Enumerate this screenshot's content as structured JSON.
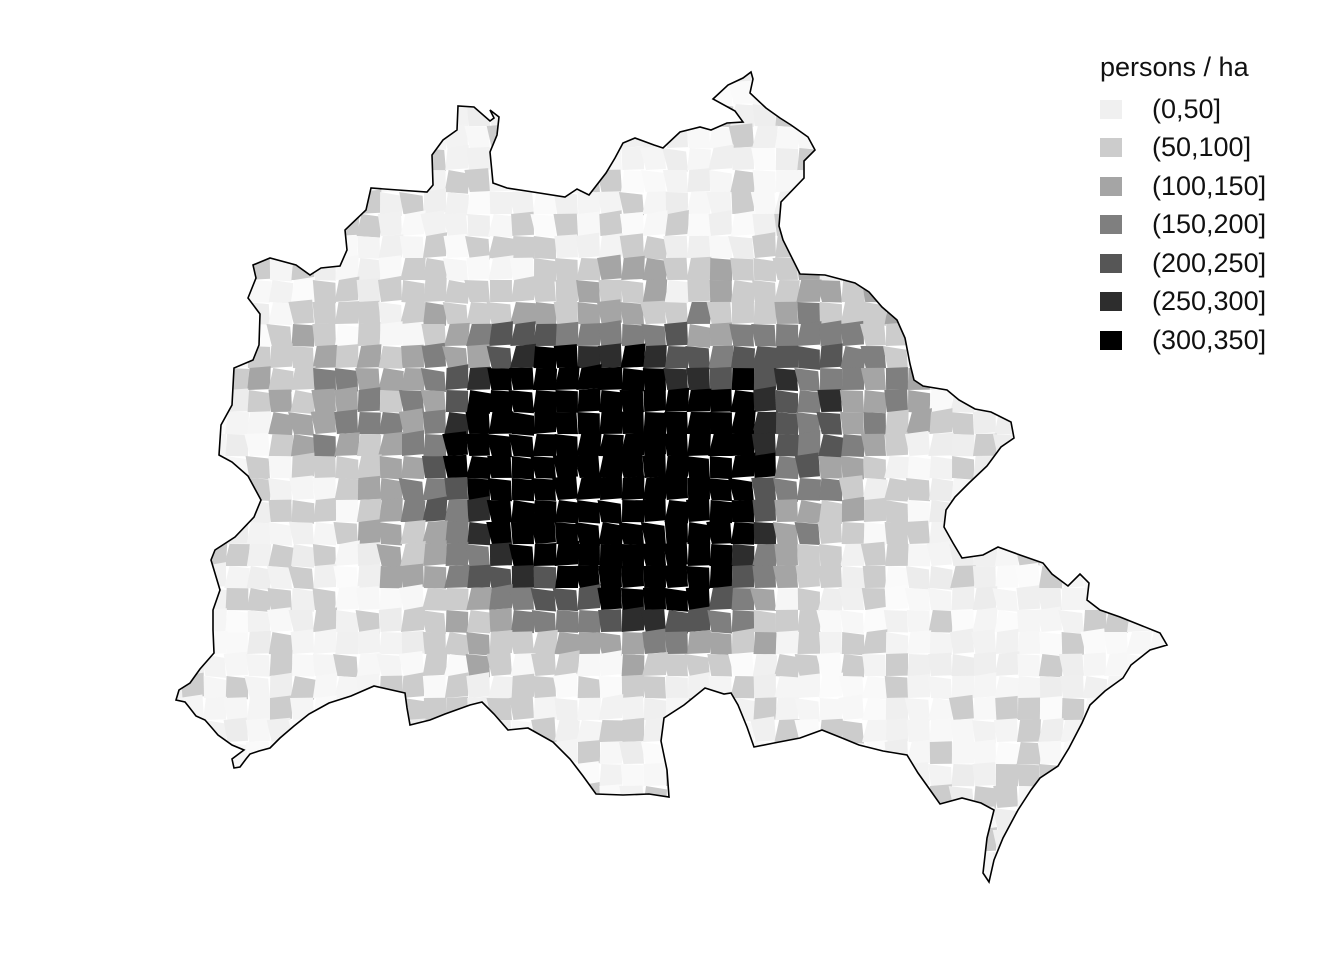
{
  "legend": {
    "title": "persons / ha",
    "items": [
      {
        "label": "(0,50]",
        "color": "#f0f0f0"
      },
      {
        "label": "(50,100]",
        "color": "#cccccc"
      },
      {
        "label": "(100,150]",
        "color": "#a5a5a5"
      },
      {
        "label": "(150,200]",
        "color": "#7f7f7f"
      },
      {
        "label": "(200,250]",
        "color": "#565656"
      },
      {
        "label": "(250,300]",
        "color": "#2d2d2d"
      },
      {
        "label": "(300,350]",
        "color": "#000000"
      }
    ]
  },
  "map": {
    "region_name": "",
    "boundary_color": "#000000",
    "density_pattern": "highest densities in the inner city ring, decreasing toward the outskirts"
  }
}
